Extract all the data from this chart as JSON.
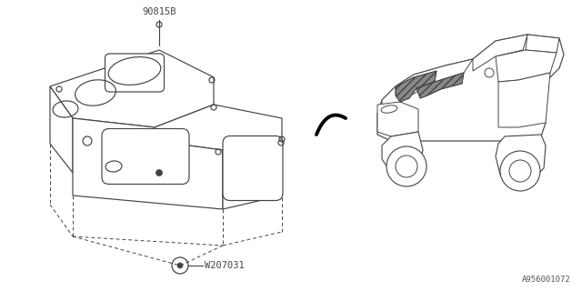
{
  "bg_color": "#ffffff",
  "line_color": "#444444",
  "label_90815B": "90815B",
  "label_W207031": "W207031",
  "ref_number": "A956001072"
}
